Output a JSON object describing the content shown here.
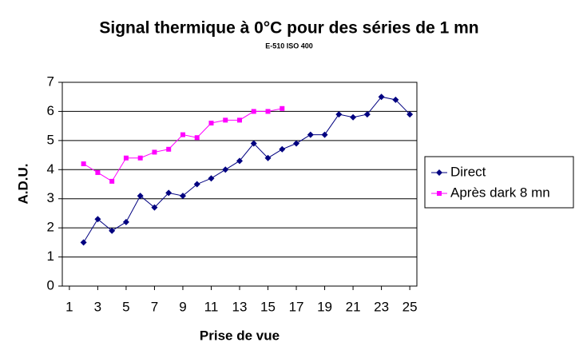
{
  "chart_data": {
    "type": "line",
    "title": "Signal thermique à 0°C pour des séries de 1 mn",
    "subtitle": "E-510 ISO 400",
    "x_label": "Prise de vue",
    "y_label": "A.D.U.",
    "xlim": [
      0.5,
      25.5
    ],
    "xticks": [
      1,
      3,
      5,
      7,
      9,
      11,
      13,
      15,
      17,
      19,
      21,
      23,
      25
    ],
    "ylim": [
      0,
      7
    ],
    "yticks": [
      0,
      1,
      2,
      3,
      4,
      5,
      6,
      7
    ],
    "grid": true,
    "legend": "right",
    "series": [
      {
        "name": "Direct",
        "color": "#000080",
        "marker": "diamond",
        "x": [
          2,
          3,
          4,
          5,
          6,
          7,
          8,
          9,
          10,
          11,
          12,
          13,
          14,
          15,
          16,
          17,
          18,
          19,
          20,
          21,
          22,
          23,
          24,
          25
        ],
        "values": [
          1.5,
          2.3,
          1.9,
          2.2,
          3.1,
          2.7,
          3.2,
          3.1,
          3.5,
          3.7,
          4.0,
          4.3,
          4.9,
          4.4,
          4.7,
          4.9,
          5.2,
          5.2,
          5.9,
          5.8,
          5.9,
          6.5,
          6.4,
          5.9
        ]
      },
      {
        "name": "Après dark 8 mn",
        "color": "#ff00ff",
        "marker": "square",
        "x": [
          2,
          3,
          4,
          5,
          6,
          7,
          8,
          9,
          10,
          11,
          12,
          13,
          14,
          15,
          16
        ],
        "values": [
          4.2,
          3.9,
          3.6,
          4.4,
          4.4,
          4.6,
          4.7,
          5.2,
          5.1,
          5.6,
          5.7,
          5.7,
          6.0,
          6.0,
          6.1
        ]
      }
    ]
  }
}
